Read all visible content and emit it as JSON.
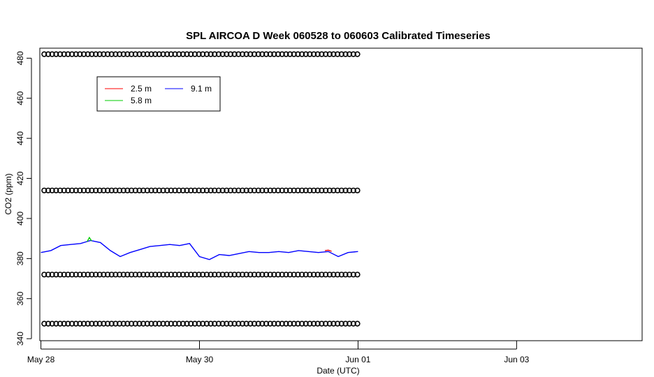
{
  "chart_data": {
    "type": "line",
    "title": "SPL AIRCOA D  Week 060528 to 060603  Calibrated Timeseries",
    "xlabel": "Date (UTC)",
    "ylabel": "CO2 (ppm)",
    "xlim": [
      "2006-05-27T23:40",
      "2006-06-04T14:00"
    ],
    "ylim": [
      339,
      485
    ],
    "x_ticks": [
      {
        "label": "May 28",
        "date": "2006-05-28T00:00"
      },
      {
        "label": "May 30",
        "date": "2006-05-30T00:00"
      },
      {
        "label": "Jun 01",
        "date": "2006-06-01T00:00"
      },
      {
        "label": "Jun 03",
        "date": "2006-06-03T00:00"
      }
    ],
    "y_ticks": [
      340,
      360,
      380,
      400,
      420,
      440,
      460,
      480
    ],
    "legend": {
      "placement": "top-left",
      "entries": [
        {
          "label": "2.5 m",
          "color": "#ff0000"
        },
        {
          "label": "5.8 m",
          "color": "#00cc00"
        },
        {
          "label": "9.1 m",
          "color": "#0000ff"
        }
      ]
    },
    "series": [
      {
        "name": "9.1 m",
        "color": "#0000ff",
        "x": [
          "2006-05-28T00:00",
          "2006-05-28T03:00",
          "2006-05-28T06:00",
          "2006-05-28T09:00",
          "2006-05-28T12:00",
          "2006-05-28T15:00",
          "2006-05-28T18:00",
          "2006-05-28T21:00",
          "2006-05-29T00:00",
          "2006-05-29T03:00",
          "2006-05-29T06:00",
          "2006-05-29T09:00",
          "2006-05-29T12:00",
          "2006-05-29T15:00",
          "2006-05-29T18:00",
          "2006-05-29T21:00",
          "2006-05-30T00:00",
          "2006-05-30T03:00",
          "2006-05-30T06:00",
          "2006-05-30T09:00",
          "2006-05-30T12:00",
          "2006-05-30T15:00",
          "2006-05-30T18:00",
          "2006-05-30T21:00",
          "2006-05-31T00:00",
          "2006-05-31T03:00",
          "2006-05-31T06:00",
          "2006-05-31T09:00",
          "2006-05-31T12:00",
          "2006-05-31T15:00",
          "2006-05-31T18:00",
          "2006-05-31T21:00",
          "2006-06-01T00:00"
        ],
        "y": [
          383,
          384,
          386.5,
          387,
          387.5,
          389,
          388,
          384,
          381,
          383,
          384.5,
          386,
          386.5,
          387,
          386.5,
          387.5,
          381,
          379.5,
          382,
          381.5,
          382.5,
          383.5,
          383,
          383,
          383.5,
          383,
          384,
          383.5,
          383,
          383.5,
          381,
          383,
          383.5
        ]
      },
      {
        "name": "2.5 m",
        "color": "#ff0000",
        "x": [
          "2006-05-31T14:00",
          "2006-05-31T15:00",
          "2006-05-31T16:00"
        ],
        "y": [
          384,
          384.2,
          383.6
        ]
      },
      {
        "name": "5.8 m",
        "color": "#00cc00",
        "x": [
          "2006-05-28T14:00",
          "2006-05-28T14:40",
          "2006-05-28T15:20"
        ],
        "y": [
          388.5,
          390.5,
          388.8
        ]
      }
    ],
    "calibration_markers": {
      "levels": [
        482,
        414,
        372,
        347.5
      ],
      "x_start": "2006-05-28T01:00",
      "x_end": "2006-06-01T00:00",
      "interval_hours": 1.2
    }
  }
}
